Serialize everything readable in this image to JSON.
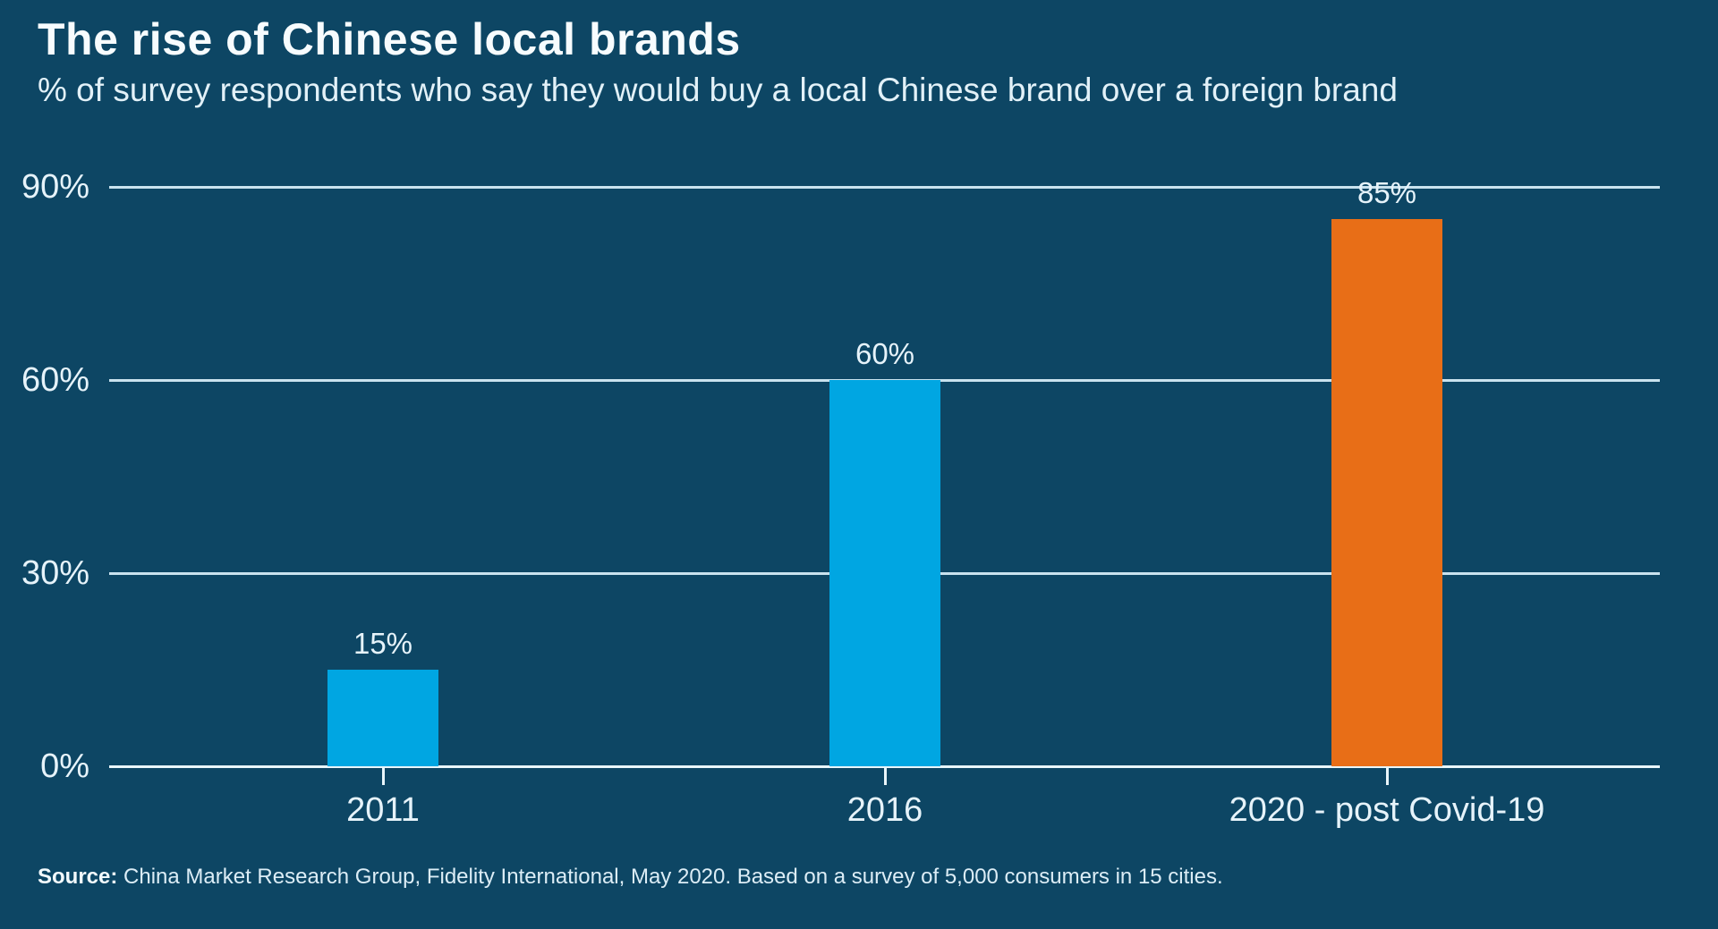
{
  "title": "The rise of Chinese local brands",
  "subtitle": "% of survey respondents who say they would buy a local Chinese brand over a foreign brand",
  "source": {
    "label": "Source:",
    "text": " China Market Research Group, Fidelity International, May 2020. Based on a survey of 5,000 consumers in 15 cities."
  },
  "chart_data": {
    "type": "bar",
    "title": "The rise of Chinese local brands",
    "subtitle": "% of survey respondents who say they would buy a local Chinese brand over a foreign brand",
    "categories": [
      "2011",
      "2016",
      "2020 - post Covid-19"
    ],
    "values": [
      15,
      60,
      85
    ],
    "value_labels": [
      "15%",
      "60%",
      "85%"
    ],
    "series_colors": [
      "#00a6e2",
      "#00a6e2",
      "#e86e17"
    ],
    "xlabel": "",
    "ylabel": "",
    "ylim": [
      0,
      90
    ],
    "yticks": [
      0,
      30,
      60,
      90
    ],
    "ytick_labels": [
      "0%",
      "30%",
      "60%",
      "90%"
    ],
    "grid": true,
    "legend": false
  },
  "colors": {
    "background": "#0d4664",
    "bar_blue": "#00a6e2",
    "bar_orange": "#e86e17",
    "gridline": "#c9e2ee",
    "axis": "#e9f6fb",
    "text": "#e6f3fa"
  }
}
